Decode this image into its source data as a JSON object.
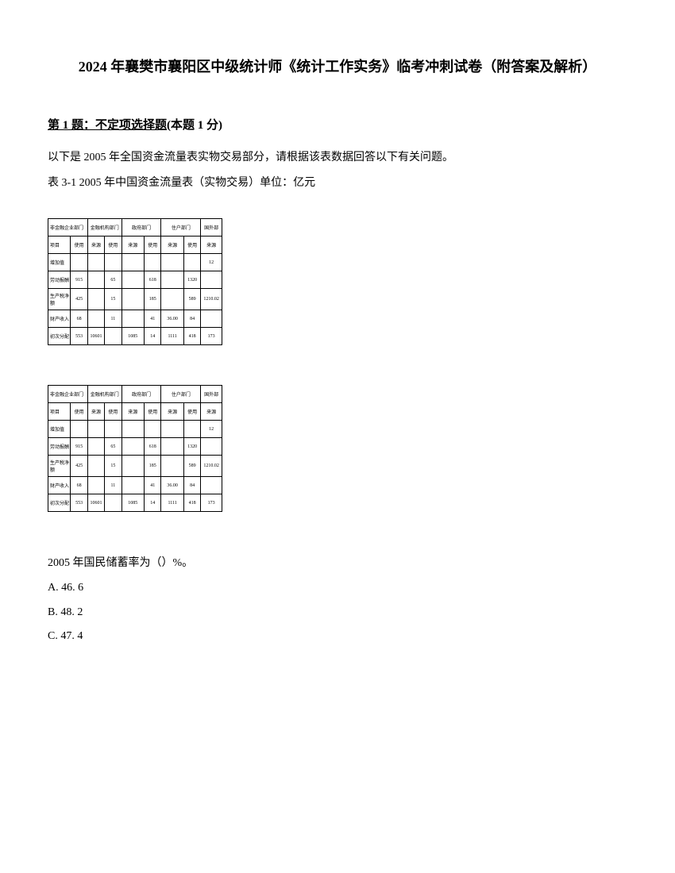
{
  "title": "2024 年襄樊市襄阳区中级统计师《统计工作实务》临考冲刺试卷（附答案及解析）",
  "section": {
    "number": "第 1 题：",
    "type": "不定项选择题",
    "score": "(本题 1 分)"
  },
  "intro": {
    "line1": "以下是 2005 年全国资金流量表实物交易部分，请根据该表数据回答以下有关问题。",
    "line2": "表 3-1  2005 年中国资金流量表（实物交易）单位：亿元"
  },
  "table": {
    "header": {
      "r1c1": "非金融企业部门",
      "r1c2": "金融机构部门",
      "r1c3": "政府部门",
      "r1c4": "住户部门",
      "r1c5": "国外部",
      "r2_label": "项目",
      "r2c1": "使用",
      "r2c2": "来源",
      "r2c3": "使用",
      "r2c4": "来源",
      "r2c5": "使用",
      "r2c6": "来源",
      "r2c7": "使用",
      "r2c8": "来源"
    },
    "rows": [
      {
        "label": "增加值",
        "c1": "",
        "c2": "",
        "c3": "",
        "c4": "",
        "c5": "",
        "c6": "",
        "c7": "",
        "c8": "12"
      },
      {
        "label": "劳动报酬",
        "c1": "915",
        "c2": "",
        "c3": "65",
        "c4": "",
        "c5": "618",
        "c6": "",
        "c7": "1320",
        "c8": ""
      },
      {
        "label": "生产税净额",
        "c1": "425",
        "c2": "",
        "c3": "15",
        "c4": "",
        "c5": "185",
        "c6": "",
        "c7": "589",
        "c8": "1210.02"
      },
      {
        "label": "财产收入",
        "c1": "68",
        "c2": "",
        "c3": "11",
        "c4": "",
        "c5": "41",
        "c6": "36.00",
        "c7": "84",
        "c8": ""
      },
      {
        "label": "初次分配",
        "c1": "553",
        "c2": "10601",
        "c3": "",
        "c4": "1085",
        "c5": "14",
        "c6": "1111",
        "c7": "418",
        "c8": "173"
      }
    ]
  },
  "question": "2005 年国民储蓄率为（）%。",
  "options": {
    "a": "A. 46. 6",
    "b": "B. 48. 2",
    "c": "C. 47. 4"
  }
}
